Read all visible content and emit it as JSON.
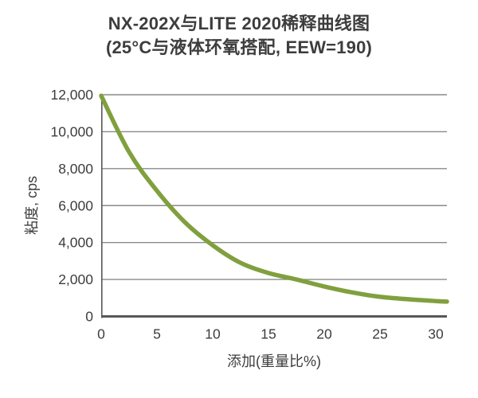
{
  "page": {
    "background": "#ffffff"
  },
  "chart_data": {
    "type": "line",
    "title": "NX-202X与LITE 2020稀释曲线图",
    "subtitle": "(25°C与液体环氧搭配, EEW=190)",
    "xlabel": "添加(重量比%)",
    "ylabel": "粘度, cps",
    "xlim": [
      0,
      31
    ],
    "ylim": [
      0,
      12000
    ],
    "x_ticks": [
      0,
      5,
      10,
      15,
      20,
      25,
      30
    ],
    "y_ticks": [
      0,
      2000,
      4000,
      6000,
      8000,
      10000,
      12000
    ],
    "y_tick_labels": [
      "0",
      "2,000",
      "4,000",
      "6,000",
      "8,000",
      "10,000",
      "12,000"
    ],
    "grid": "horizontal-only",
    "legend": "none",
    "colors": {
      "line": "#80a03e",
      "grid": "#8a8a8a",
      "axis": "#58585a",
      "text": "#3d3d3d"
    },
    "series": [
      {
        "name": "NX-202X 稀释曲线",
        "color": "#80a03e",
        "x": [
          0,
          2.5,
          5,
          7.5,
          10,
          12.5,
          15,
          17.5,
          20,
          22.5,
          25,
          27.5,
          30,
          31
        ],
        "y": [
          11950,
          8900,
          6800,
          5100,
          3850,
          2900,
          2350,
          2000,
          1620,
          1300,
          1060,
          930,
          830,
          800
        ]
      }
    ]
  }
}
